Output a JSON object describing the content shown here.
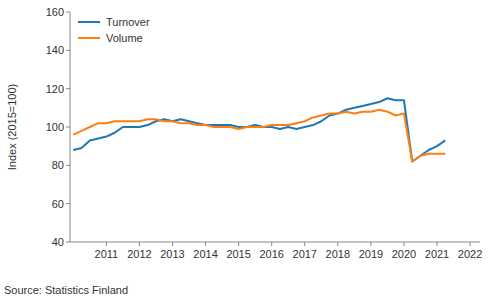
{
  "chart_data": {
    "type": "line",
    "y_label": "Index (2015=100)",
    "source": "Source: Statistics Finland",
    "x": [
      2010.0,
      2010.25,
      2010.5,
      2010.75,
      2011.0,
      2011.25,
      2011.5,
      2011.75,
      2012.0,
      2012.25,
      2012.5,
      2012.75,
      2013.0,
      2013.25,
      2013.5,
      2013.75,
      2014.0,
      2014.25,
      2014.5,
      2014.75,
      2015.0,
      2015.25,
      2015.5,
      2015.75,
      2016.0,
      2016.25,
      2016.5,
      2016.75,
      2017.0,
      2017.25,
      2017.5,
      2017.75,
      2018.0,
      2018.25,
      2018.5,
      2018.75,
      2019.0,
      2019.25,
      2019.5,
      2019.75,
      2020.0,
      2020.25,
      2020.5,
      2020.75,
      2021.0,
      2021.25
    ],
    "series": [
      {
        "name": "Turnover",
        "color": "#1f77b4",
        "values": [
          88,
          89,
          93,
          94,
          95,
          97,
          100,
          100,
          100,
          101,
          103,
          104,
          103,
          104,
          103,
          102,
          101,
          101,
          101,
          101,
          100,
          100,
          101,
          100,
          100,
          99,
          100,
          99,
          100,
          101,
          103,
          106,
          107,
          109,
          110,
          111,
          112,
          113,
          115,
          114,
          114,
          82,
          85,
          88,
          90,
          93
        ]
      },
      {
        "name": "Volume",
        "color": "#ff7f0e",
        "values": [
          96,
          98,
          100,
          102,
          102,
          103,
          103,
          103,
          103,
          104,
          104,
          103,
          103,
          102,
          102,
          101,
          101,
          100,
          100,
          100,
          99,
          100,
          100,
          100,
          101,
          101,
          101,
          102,
          103,
          105,
          106,
          107,
          107,
          108,
          107,
          108,
          108,
          109,
          108,
          106,
          107,
          82,
          85,
          86,
          86,
          86
        ]
      }
    ],
    "xlim": [
      2009.9,
      2022.3
    ],
    "xticks": [
      2011,
      2012,
      2013,
      2014,
      2015,
      2016,
      2017,
      2018,
      2019,
      2020,
      2021,
      2022
    ],
    "ylim": [
      40,
      160
    ],
    "yticks": [
      40,
      60,
      80,
      100,
      120,
      140,
      160
    ],
    "grid": false,
    "legend": "top-left"
  }
}
